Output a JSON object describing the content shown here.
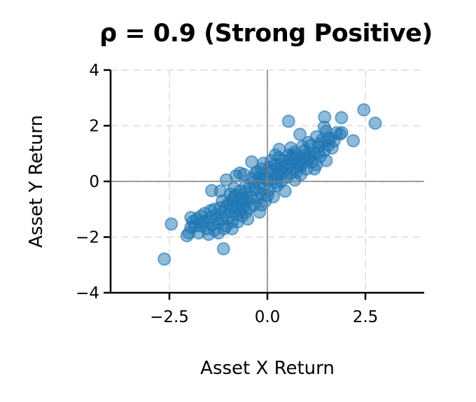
{
  "chart_data": {
    "type": "scatter",
    "title": "ρ = 0.9 (Strong Positive)",
    "xlabel": "Asset X Return",
    "ylabel": "Asset Y Return",
    "xlim": [
      -4,
      4
    ],
    "ylim": [
      -4,
      4
    ],
    "xticks": [
      -2.5,
      0.0,
      2.5
    ],
    "xtick_labels": [
      "−2.5",
      "0.0",
      "2.5"
    ],
    "yticks": [
      -4,
      -2,
      0,
      2,
      4
    ],
    "ytick_labels": [
      "−4",
      "−2",
      "0",
      "2",
      "4"
    ],
    "grid": true,
    "zero_lines": true,
    "marker_color": "#1f77b4",
    "marker_alpha": 0.5,
    "correlation": 0.9,
    "points": [
      [
        -2.63,
        -2.79
      ],
      [
        -1.12,
        -2.42
      ],
      [
        0.54,
        2.16
      ],
      [
        2.46,
        2.57
      ],
      [
        2.75,
        2.09
      ],
      [
        1.46,
        2.31
      ],
      [
        1.89,
        2.29
      ],
      [
        2.19,
        1.46
      ],
      [
        1.76,
        1.74
      ],
      [
        0.83,
        1.69
      ],
      [
        -1.42,
        -0.33
      ],
      [
        -2.45,
        -1.53
      ],
      [
        -2.0,
        -1.85
      ],
      [
        -1.95,
        -1.65
      ],
      [
        -1.9,
        -1.45
      ],
      [
        -1.8,
        -1.35
      ],
      [
        -1.7,
        -1.6
      ],
      [
        -1.6,
        -1.45
      ],
      [
        -1.55,
        -1.7
      ],
      [
        -1.5,
        -1.9
      ],
      [
        -1.45,
        -1.3
      ],
      [
        -1.4,
        -1.55
      ],
      [
        -1.35,
        -1.75
      ],
      [
        -1.3,
        -1.2
      ],
      [
        -1.25,
        -1.5
      ],
      [
        -1.2,
        -0.95
      ],
      [
        -1.15,
        -1.35
      ],
      [
        -1.1,
        -1.1
      ],
      [
        -1.05,
        -1.6
      ],
      [
        -1.0,
        -0.8
      ],
      [
        -1.0,
        -1.3
      ],
      [
        -0.95,
        -1.05
      ],
      [
        -0.9,
        -0.65
      ],
      [
        -0.9,
        -1.45
      ],
      [
        -0.85,
        -0.9
      ],
      [
        -0.8,
        -1.2
      ],
      [
        -0.8,
        -0.5
      ],
      [
        -0.75,
        -0.75
      ],
      [
        -0.7,
        -1.05
      ],
      [
        -0.7,
        -0.35
      ],
      [
        -0.65,
        -0.6
      ],
      [
        -0.6,
        -0.9
      ],
      [
        -0.6,
        0.25
      ],
      [
        -0.55,
        -0.4
      ],
      [
        -0.5,
        -0.7
      ],
      [
        -0.5,
        -1.35
      ],
      [
        -0.45,
        -0.2
      ],
      [
        -0.4,
        -0.55
      ],
      [
        -0.4,
        0.1
      ],
      [
        -0.35,
        -0.85
      ],
      [
        -0.3,
        -0.3
      ],
      [
        -0.3,
        0.3
      ],
      [
        -0.25,
        -0.6
      ],
      [
        -0.2,
        -0.1
      ],
      [
        -0.2,
        -1.1
      ],
      [
        -0.15,
        -0.45
      ],
      [
        -0.1,
        0.2
      ],
      [
        -0.1,
        -0.25
      ],
      [
        -0.05,
        -0.7
      ],
      [
        0.0,
        0.05
      ],
      [
        -0.8,
        0.2
      ],
      [
        -0.7,
        0.3
      ],
      [
        -1.05,
        0.05
      ],
      [
        -1.2,
        -0.35
      ],
      [
        -0.65,
        -1.25
      ],
      [
        -0.25,
        0.35
      ],
      [
        -0.4,
        0.7
      ],
      [
        -0.1,
        0.65
      ],
      [
        0.05,
        -0.3
      ],
      [
        0.1,
        0.4
      ],
      [
        0.15,
        -0.55
      ],
      [
        0.15,
        0.1
      ],
      [
        0.2,
        0.6
      ],
      [
        0.25,
        -0.15
      ],
      [
        0.3,
        0.35
      ],
      [
        0.3,
        1.15
      ],
      [
        0.35,
        0.0
      ],
      [
        0.4,
        0.75
      ],
      [
        0.45,
        -0.35
      ],
      [
        0.5,
        0.45
      ],
      [
        0.5,
        0.15
      ],
      [
        0.55,
        0.95
      ],
      [
        0.6,
        0.3
      ],
      [
        0.65,
        0.7
      ],
      [
        0.7,
        0.05
      ],
      [
        0.7,
        1.05
      ],
      [
        0.75,
        0.5
      ],
      [
        0.8,
        0.85
      ],
      [
        0.85,
        0.25
      ],
      [
        0.9,
        0.65
      ],
      [
        0.95,
        1.1
      ],
      [
        1.0,
        0.45
      ],
      [
        1.05,
        0.85
      ],
      [
        1.1,
        1.3
      ],
      [
        1.15,
        0.7
      ],
      [
        1.2,
        1.0
      ],
      [
        1.25,
        0.6
      ],
      [
        1.3,
        1.25
      ],
      [
        1.35,
        0.9
      ],
      [
        1.4,
        1.5
      ],
      [
        1.45,
        1.1
      ],
      [
        1.5,
        1.8
      ],
      [
        1.55,
        1.3
      ],
      [
        1.5,
        0.75
      ],
      [
        1.6,
        1.55
      ],
      [
        1.65,
        1.2
      ],
      [
        1.7,
        1.45
      ],
      [
        1.85,
        1.7
      ],
      [
        1.9,
        1.75
      ],
      [
        1.45,
        1.95
      ],
      [
        1.25,
        1.6
      ],
      [
        1.05,
        1.4
      ],
      [
        0.9,
        1.25
      ],
      [
        0.6,
        1.2
      ],
      [
        0.35,
        0.6
      ],
      [
        0.2,
        0.95
      ],
      [
        0.05,
        0.5
      ],
      [
        -0.15,
        0.45
      ],
      [
        0.0,
        -0.5
      ],
      [
        0.1,
        0.75
      ],
      [
        -1.7,
        -1.25
      ],
      [
        -1.85,
        -1.6
      ],
      [
        -2.05,
        -1.95
      ],
      [
        -1.95,
        -1.3
      ],
      [
        -1.6,
        -1.15
      ],
      [
        -1.35,
        -1.0
      ],
      [
        -1.25,
        -1.85
      ],
      [
        -1.1,
        -1.7
      ],
      [
        -0.9,
        -1.7
      ],
      [
        -0.75,
        -1.45
      ],
      [
        -0.55,
        -1.1
      ],
      [
        -0.35,
        -0.05
      ],
      [
        -0.85,
        -0.25
      ],
      [
        -0.95,
        -0.45
      ],
      [
        -1.15,
        -0.7
      ],
      [
        -0.45,
        -0.95
      ],
      [
        -0.15,
        -0.85
      ],
      [
        0.25,
        0.2
      ],
      [
        0.45,
        0.55
      ],
      [
        0.65,
        0.95
      ],
      [
        0.85,
        0.55
      ],
      [
        1.0,
        0.95
      ],
      [
        1.2,
        0.45
      ],
      [
        0.75,
        0.35
      ],
      [
        0.55,
        0.6
      ],
      [
        0.4,
        0.3
      ],
      [
        0.3,
        0.85
      ],
      [
        0.15,
        0.35
      ],
      [
        -0.05,
        0.1
      ],
      [
        -0.2,
        0.15
      ],
      [
        -0.55,
        -0.15
      ],
      [
        -0.65,
        -0.8
      ],
      [
        -0.75,
        -1.0
      ],
      [
        -1.3,
        -1.35
      ],
      [
        -1.45,
        -1.05
      ],
      [
        -1.65,
        -1.45
      ],
      [
        -1.75,
        -1.85
      ],
      [
        -1.05,
        -0.9
      ],
      [
        -0.85,
        -0.55
      ],
      [
        -0.6,
        -0.6
      ],
      [
        0.2,
        -0.05
      ],
      [
        0.35,
        0.45
      ],
      [
        0.6,
        0.85
      ],
      [
        0.8,
        0.6
      ],
      [
        0.95,
        0.8
      ],
      [
        1.1,
        0.9
      ],
      [
        1.3,
        1.05
      ],
      [
        1.35,
        1.35
      ],
      [
        1.55,
        1.5
      ],
      [
        0.7,
        0.8
      ]
    ]
  }
}
